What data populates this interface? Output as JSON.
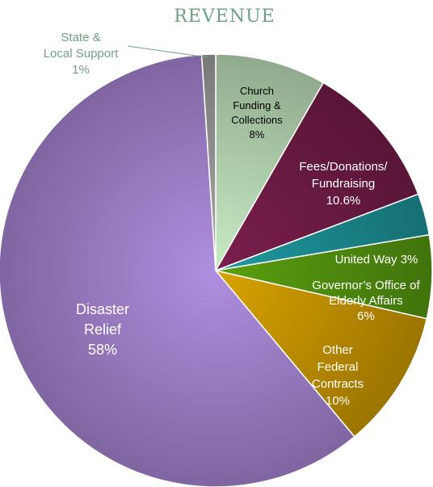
{
  "chart_data": {
    "type": "pie",
    "title": "REVENUE",
    "slices": [
      {
        "key": "church",
        "label": [
          "Church",
          "Funding &",
          "Collections",
          "8%"
        ],
        "value": 8,
        "color": "#c8ecc4",
        "label_color": "#000000"
      },
      {
        "key": "fees",
        "label": [
          "Fees/Donations/",
          "Fundraising",
          "10.6%"
        ],
        "value": 10.6,
        "color": "#7b1f4c",
        "label_color": "#ffffff"
      },
      {
        "key": "united-way",
        "label": [
          "United Way 3%"
        ],
        "value": 3,
        "color": "#1f9aa0",
        "label_color": "#ffffff"
      },
      {
        "key": "governors-office",
        "label": [
          "Governor’s Office of",
          "Elderly Affairs",
          "6%"
        ],
        "value": 6,
        "color": "#5aa010",
        "label_color": "#ffffff"
      },
      {
        "key": "other-federal",
        "label": [
          "Other",
          "Federal",
          "Contracts",
          "10%"
        ],
        "value": 10,
        "color": "#d9a300",
        "label_color": "#ffffff"
      },
      {
        "key": "disaster-relief",
        "label": [
          "Disaster",
          "Relief",
          "58%"
        ],
        "value": 58,
        "color": "#b08ee0",
        "label_color": "#ffffff"
      },
      {
        "key": "state-local",
        "label": [
          "State &",
          "Local Support",
          "1%"
        ],
        "value": 1,
        "color": "#a8a8a8",
        "label_color": "#6f9f85"
      }
    ]
  }
}
